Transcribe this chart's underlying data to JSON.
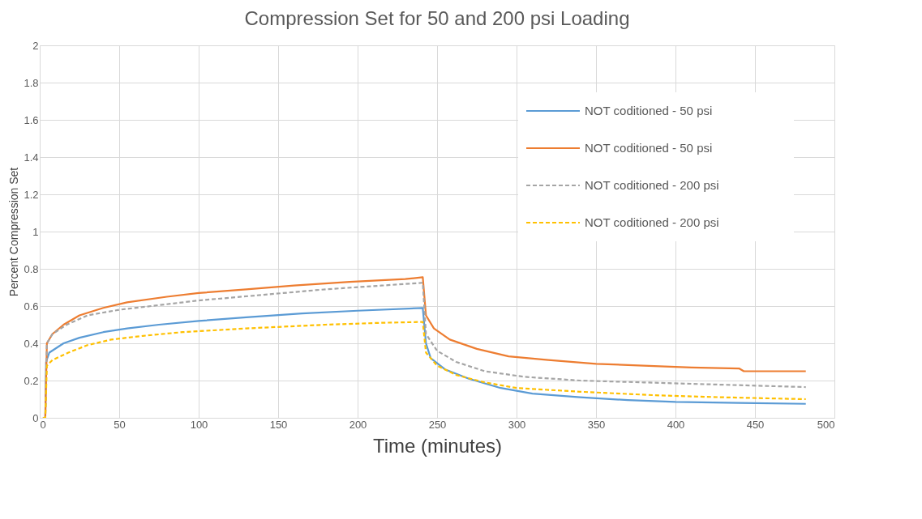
{
  "chart_data": {
    "type": "line",
    "title": "Compression Set for 50 and 200 psi Loading",
    "xlabel": "Time (minutes)",
    "ylabel": "Percent Compression Set",
    "xlim": [
      0,
      500
    ],
    "xticks": [
      0,
      50,
      100,
      150,
      200,
      250,
      300,
      350,
      400,
      450,
      500
    ],
    "ylim": [
      0,
      2
    ],
    "yticks": [
      0,
      0.2,
      0.4,
      0.6,
      0.8,
      1,
      1.2,
      1.4,
      1.6,
      1.8,
      2
    ],
    "grid": true,
    "legend": "right",
    "marker": "none",
    "series": [
      {
        "name": "NOT coditioned - 50 psi",
        "color": "#5b9bd5",
        "line_style": "solid",
        "x": [
          2,
          3.5,
          4,
          6,
          15,
          25,
          40,
          55,
          75,
          100,
          130,
          165,
          200,
          241,
          243,
          246,
          255,
          270,
          290,
          310,
          340,
          370,
          400,
          440,
          482
        ],
        "values": [
          0,
          0,
          0.3,
          0.35,
          0.4,
          0.43,
          0.46,
          0.48,
          0.5,
          0.52,
          0.54,
          0.56,
          0.575,
          0.59,
          0.4,
          0.32,
          0.26,
          0.21,
          0.16,
          0.13,
          0.11,
          0.095,
          0.085,
          0.08,
          0.075
        ]
      },
      {
        "name": "NOT coditioned - 50 psi",
        "color": "#ed7d31",
        "line_style": "solid",
        "x": [
          2,
          3.5,
          4.5,
          8,
          15,
          25,
          40,
          55,
          80,
          100,
          130,
          160,
          195,
          230,
          241,
          243,
          248,
          258,
          275,
          295,
          320,
          350,
          380,
          410,
          440,
          443,
          482
        ],
        "values": [
          0,
          0,
          0.4,
          0.45,
          0.5,
          0.55,
          0.59,
          0.62,
          0.65,
          0.67,
          0.69,
          0.71,
          0.73,
          0.745,
          0.755,
          0.55,
          0.48,
          0.42,
          0.37,
          0.33,
          0.31,
          0.29,
          0.28,
          0.27,
          0.265,
          0.25,
          0.25
        ]
      },
      {
        "name": "NOT coditioned - 200 psi",
        "color": "#a5a5a5",
        "line_style": "dashed",
        "x": [
          2,
          3.5,
          4.5,
          8,
          17,
          30,
          50,
          70,
          100,
          140,
          180,
          215,
          241,
          243,
          250,
          262,
          280,
          305,
          340,
          380,
          420,
          482
        ],
        "values": [
          0,
          0,
          0.4,
          0.45,
          0.5,
          0.55,
          0.58,
          0.6,
          0.63,
          0.66,
          0.69,
          0.71,
          0.725,
          0.45,
          0.36,
          0.3,
          0.25,
          0.22,
          0.2,
          0.19,
          0.18,
          0.165
        ]
      },
      {
        "name": "NOT coditioned - 200 psi",
        "color": "#ffc000",
        "line_style": "dashed",
        "x": [
          2,
          3.5,
          4.5,
          8,
          18,
          30,
          45,
          65,
          90,
          130,
          180,
          215,
          241,
          243,
          250,
          262,
          280,
          300,
          340,
          390,
          430,
          482
        ],
        "values": [
          0,
          0,
          0.28,
          0.31,
          0.35,
          0.39,
          0.42,
          0.44,
          0.46,
          0.48,
          0.5,
          0.51,
          0.515,
          0.35,
          0.28,
          0.23,
          0.19,
          0.16,
          0.14,
          0.12,
          0.11,
          0.1
        ]
      }
    ]
  }
}
